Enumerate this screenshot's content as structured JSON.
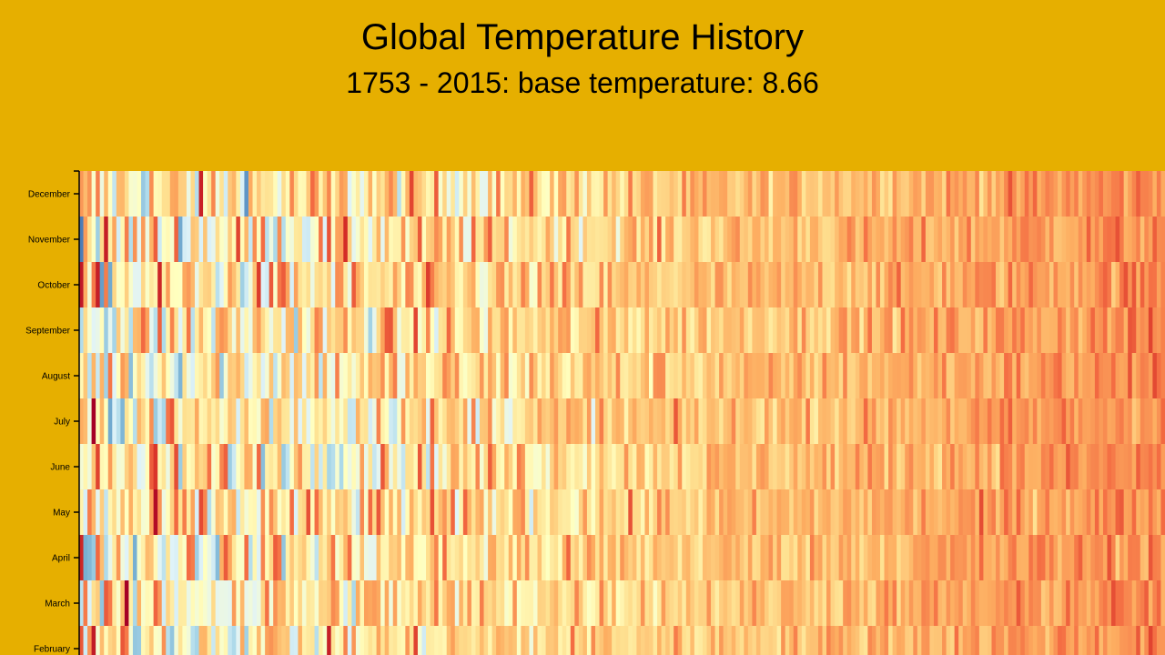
{
  "colors": {
    "background": "#E6AF00",
    "axis": "#000000",
    "scale": [
      "#313695",
      "#4575b4",
      "#74add1",
      "#abd9e9",
      "#e0f3f8",
      "#ffffbf",
      "#fee090",
      "#fdae61",
      "#f46d43",
      "#d73027",
      "#a50026"
    ]
  },
  "chart_data": {
    "type": "heatmap",
    "title": "Global Temperature History",
    "subtitle": "1753 - 2015: base temperature: 8.66",
    "base_temperature": 8.66,
    "x_range": [
      1753,
      2015
    ],
    "y_tick_labels": [
      "December",
      "November",
      "October",
      "September",
      "August",
      "July",
      "June",
      "May",
      "April",
      "March",
      "February"
    ],
    "months_visible": [
      "December",
      "November",
      "October",
      "September",
      "August",
      "July",
      "June",
      "May",
      "April",
      "March",
      "February"
    ],
    "year_start": 1753,
    "year_end": 2015,
    "grid": false,
    "legend": "none visible",
    "note": "Cell colors encode monthly temperature variance around the base temperature; cool (blue) in the early years, trending warm (orange) in the recent years."
  }
}
